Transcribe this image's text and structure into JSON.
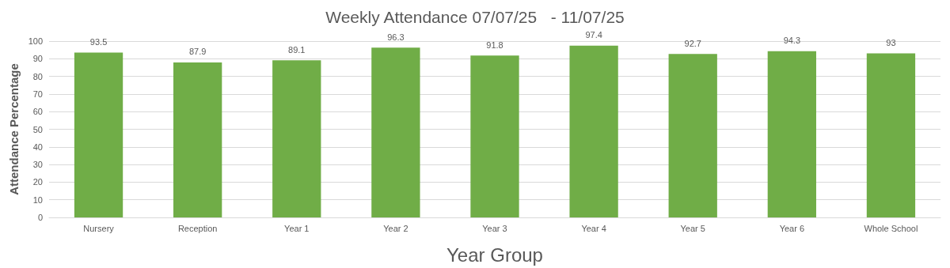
{
  "chart_data": {
    "type": "bar",
    "title": "Weekly Attendance 07/07/25   - 11/07/25",
    "xlabel": "Year Group",
    "ylabel": "Attendance Percentage",
    "categories": [
      "Nursery",
      "Reception",
      "Year 1",
      "Year 2",
      "Year 3",
      "Year 4",
      "Year 5",
      "Year 6",
      "Whole School"
    ],
    "values": [
      93.5,
      87.9,
      89.1,
      96.3,
      91.8,
      97.4,
      92.7,
      94.3,
      93
    ],
    "color": "#70ad47",
    "ylim": [
      0,
      100
    ],
    "yticks": [
      0,
      10,
      20,
      30,
      40,
      50,
      60,
      70,
      80,
      90,
      100
    ],
    "grid": "y",
    "data_labels": true
  }
}
